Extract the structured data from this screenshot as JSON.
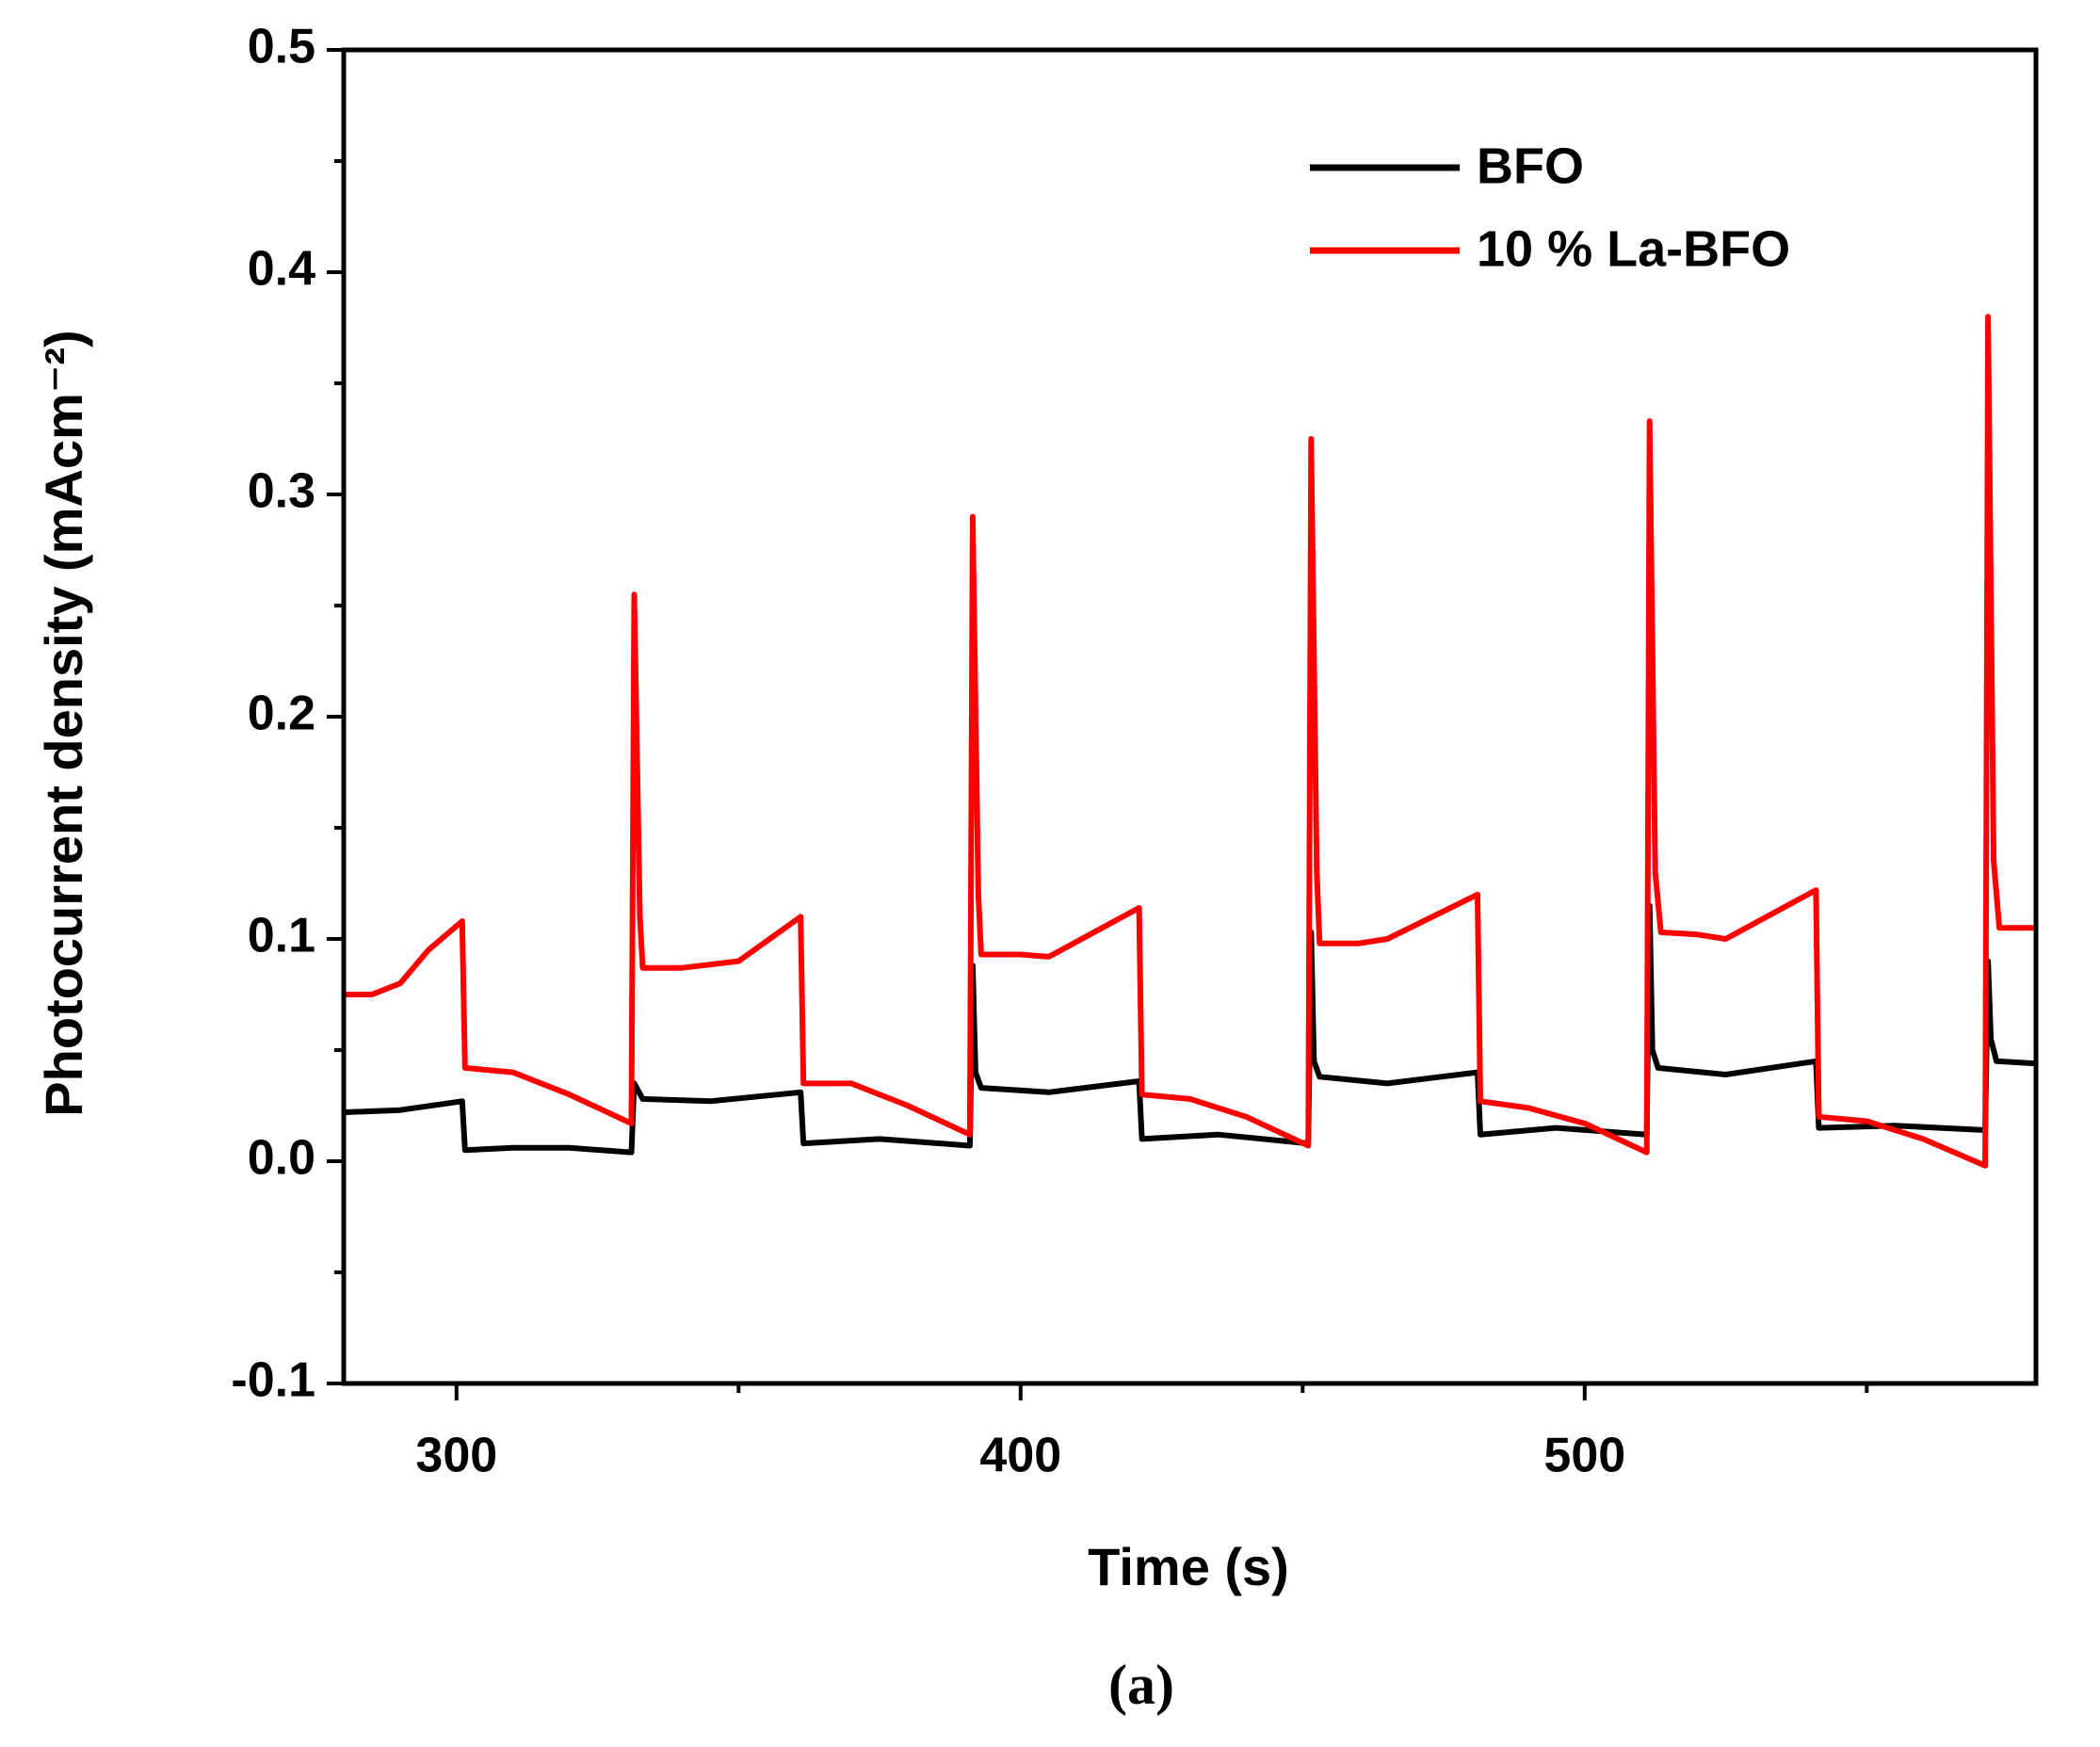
{
  "chart_data": {
    "type": "line",
    "xlabel": "Time (s)",
    "ylabel": "Photocurrent density (mAcm⁻²)",
    "caption": "(a)",
    "xlim": [
      280,
      580
    ],
    "ylim": [
      -0.1,
      0.5
    ],
    "xticks": [
      300,
      400,
      500
    ],
    "xticks_minor": [
      350,
      450,
      550
    ],
    "yticks": [
      -0.1,
      {
        "value": 0,
        "label": "0.0"
      },
      0.1,
      0.2,
      0.3,
      0.4,
      0.5
    ],
    "yticks_minor": [
      -0.05,
      0.05,
      0.15,
      0.25,
      0.35,
      0.45
    ],
    "legend": "upper right",
    "series": [
      {
        "name": "BFO",
        "color": "#000000",
        "x": [
          280,
          290,
          301,
          301.5,
          310,
          320,
          331,
          331.5,
          333,
          345,
          361,
          361.5,
          375,
          391,
          391.5,
          392,
          393,
          405,
          421,
          421.5,
          435,
          451,
          451.5,
          452,
          453,
          465,
          481,
          481.5,
          495,
          511,
          511.5,
          512,
          513,
          525,
          541,
          541.5,
          555,
          571,
          571.5,
          572,
          573,
          580
        ],
        "values": [
          0.022,
          0.023,
          0.027,
          0.005,
          0.006,
          0.006,
          0.004,
          0.035,
          0.028,
          0.027,
          0.031,
          0.008,
          0.01,
          0.007,
          0.088,
          0.04,
          0.033,
          0.031,
          0.036,
          0.01,
          0.012,
          0.008,
          0.103,
          0.045,
          0.038,
          0.035,
          0.04,
          0.012,
          0.015,
          0.012,
          0.115,
          0.05,
          0.042,
          0.039,
          0.045,
          0.015,
          0.016,
          0.014,
          0.09,
          0.055,
          0.045,
          0.044
        ]
      },
      {
        "name": "10 % La-BFO",
        "color": "#ff0000",
        "x": [
          280,
          285,
          290,
          295,
          301,
          301.5,
          310,
          320,
          331,
          331.5,
          332.5,
          333,
          340,
          350,
          361,
          361.5,
          370,
          380,
          391,
          391.5,
          392.5,
          393,
          400,
          405,
          421,
          421.5,
          430,
          440,
          451,
          451.5,
          452.5,
          453,
          460,
          465,
          481,
          481.5,
          490,
          500,
          511,
          511.5,
          512.5,
          513.5,
          520,
          525,
          541,
          541.5,
          550,
          560,
          571,
          571.5,
          572.5,
          573.5,
          580
        ],
        "values": [
          0.075,
          0.075,
          0.08,
          0.095,
          0.108,
          0.042,
          0.04,
          0.03,
          0.017,
          0.255,
          0.11,
          0.087,
          0.087,
          0.09,
          0.11,
          0.035,
          0.035,
          0.025,
          0.012,
          0.29,
          0.12,
          0.093,
          0.093,
          0.092,
          0.114,
          0.03,
          0.028,
          0.02,
          0.007,
          0.325,
          0.13,
          0.098,
          0.098,
          0.1,
          0.12,
          0.027,
          0.024,
          0.017,
          0.004,
          0.333,
          0.13,
          0.103,
          0.102,
          0.1,
          0.122,
          0.02,
          0.018,
          0.01,
          -0.002,
          0.38,
          0.135,
          0.105,
          0.105
        ]
      }
    ]
  }
}
